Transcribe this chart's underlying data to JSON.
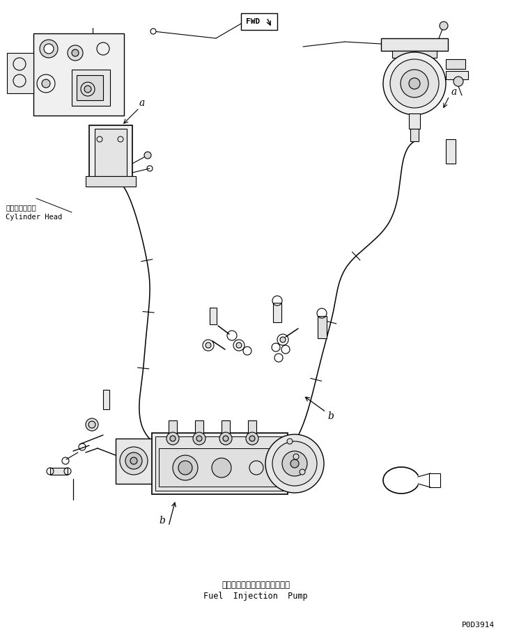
{
  "bg_color": "#ffffff",
  "line_color": "#000000",
  "label_cylinder_head_jp": "シリンダヘッド",
  "label_cylinder_head_en": "Cylinder Head",
  "label_fuel_pump_jp": "フェルインジェクションポンプ",
  "label_fuel_pump_en": "Fuel  Injection  Pump",
  "label_fwd": "FWD",
  "label_a1": "a",
  "label_a2": "a",
  "label_b1": "b",
  "label_b2": "b",
  "part_number": "P0D3914",
  "figsize": [
    7.35,
    9.18
  ],
  "dpi": 100
}
